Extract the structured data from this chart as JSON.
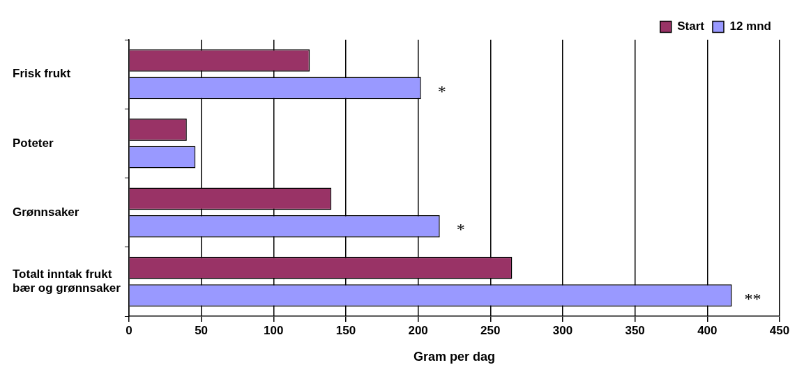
{
  "chart_data": {
    "type": "bar",
    "orientation": "horizontal",
    "xlabel": "Gram per dag",
    "categories": [
      "Frisk frukt",
      "Poteter",
      "Grønnsaker",
      "Totalt inntak frukt bær og grønnsaker"
    ],
    "series": [
      {
        "name": "Start",
        "color": "#993366",
        "values": [
          125,
          40,
          140,
          265
        ]
      },
      {
        "name": "12 mnd",
        "color": "#9999ff",
        "values": [
          202,
          46,
          215,
          417
        ]
      }
    ],
    "xlim": [
      0,
      450
    ],
    "xticks": [
      0,
      50,
      100,
      150,
      200,
      250,
      300,
      350,
      400,
      450
    ],
    "grid": "x",
    "legend": "top right",
    "annotations": [
      "*",
      "*",
      "**"
    ]
  }
}
